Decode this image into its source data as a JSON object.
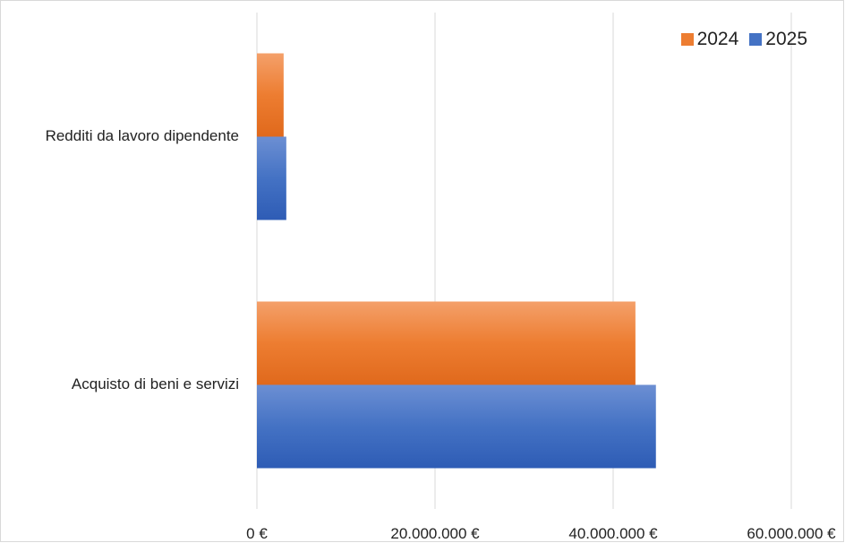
{
  "chart_data": {
    "type": "bar",
    "orientation": "horizontal",
    "categories": [
      "Redditi da lavoro dipendente",
      "Acquisto di beni e servizi"
    ],
    "series": [
      {
        "name": "2024",
        "color": "#ED7D31",
        "values": [
          3000000,
          42500000
        ]
      },
      {
        "name": "2025",
        "color": "#4472C4",
        "values": [
          3300000,
          44800000
        ]
      }
    ],
    "xlim": [
      0,
      60000000
    ],
    "xticks": [
      0,
      20000000,
      40000000,
      60000000
    ],
    "xtick_labels": [
      "0 €",
      "20.000.000 €",
      "40.000.000 €",
      "60.000.000 €"
    ],
    "grid": true,
    "legend_position": "top-right",
    "title": "",
    "xlabel": "",
    "ylabel": ""
  }
}
